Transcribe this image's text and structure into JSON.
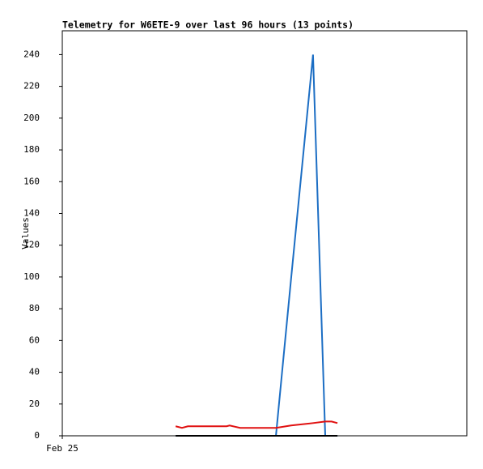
{
  "chart_data": {
    "type": "line",
    "title": "Telemetry for W6ETE-9 over last 96 hours (13 points)",
    "y_label": "Values",
    "x": [
      26.9,
      28.4,
      29.8,
      33.2,
      39.0,
      39.7,
      42.2,
      50.7,
      54.3,
      59.5,
      62.4,
      63.9,
      65.3
    ],
    "xlim": [
      0,
      96
    ],
    "xticks": [
      {
        "value": 0,
        "label": "Feb 25"
      }
    ],
    "ylim": [
      0,
      255
    ],
    "yticks": [
      0,
      20,
      40,
      60,
      80,
      100,
      120,
      140,
      160,
      180,
      200,
      220,
      240
    ],
    "series": [
      {
        "color": "#1c6ec4",
        "values": [
          0,
          0,
          0,
          0,
          0,
          0,
          0,
          0,
          99,
          240,
          0,
          0,
          0
        ]
      },
      {
        "color": "#e01010",
        "values": [
          6,
          5,
          6,
          6,
          6,
          6.5,
          5,
          5,
          6.5,
          8,
          9,
          9,
          8
        ]
      },
      {
        "color": "#000000",
        "values": [
          0,
          0,
          0,
          0,
          0,
          0,
          0,
          0,
          0,
          0,
          0,
          0,
          0
        ]
      }
    ]
  }
}
